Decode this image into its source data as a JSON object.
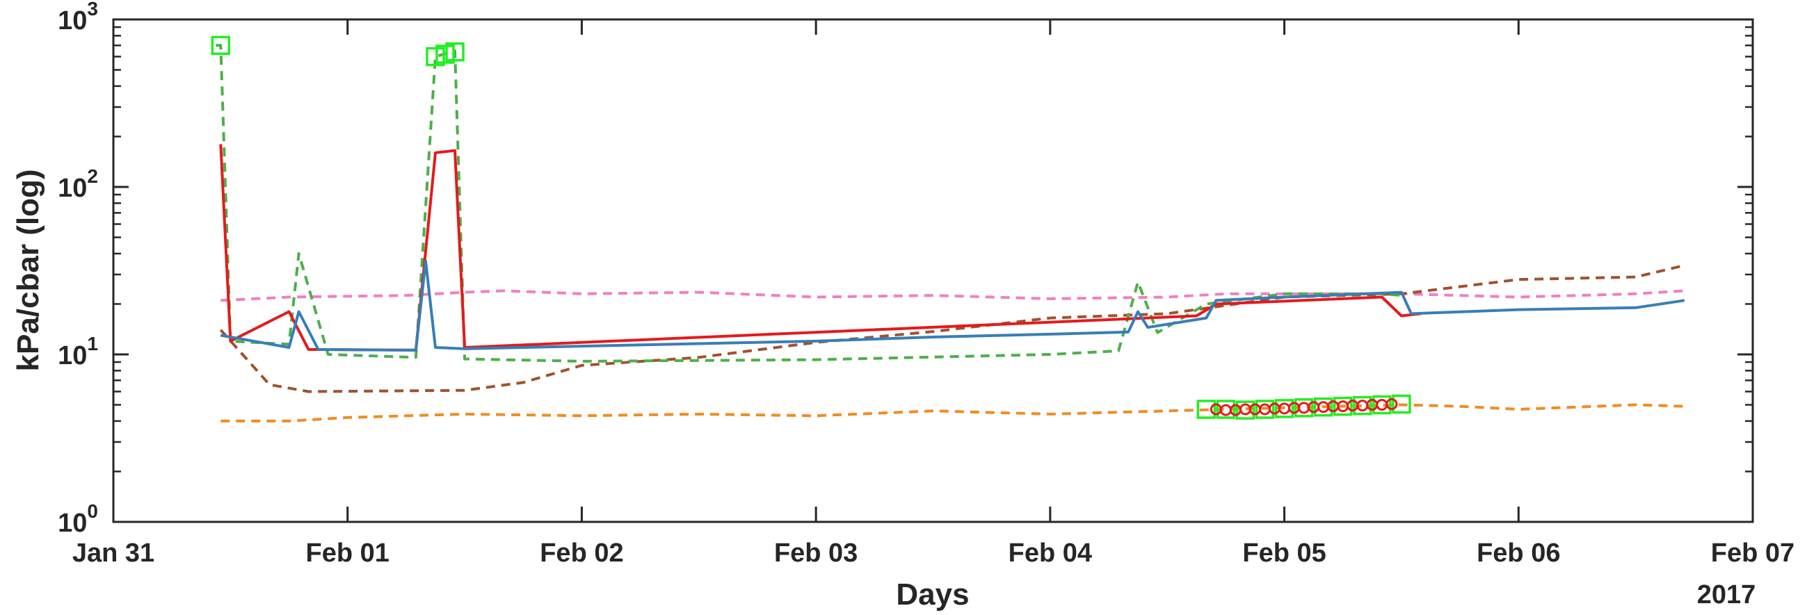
{
  "chart_data": {
    "type": "line",
    "title": "",
    "xlabel": "Days",
    "ylabel": "kPa/cbar (log)",
    "year_label": "2017",
    "y_scale": "log",
    "ylim": [
      1,
      1000
    ],
    "xlim": [
      "2017-01-31T00:00",
      "2017-02-07T00:00"
    ],
    "y_ticks": [
      {
        "value": 1,
        "base": "10",
        "exp": "0"
      },
      {
        "value": 10,
        "base": "10",
        "exp": "1"
      },
      {
        "value": 100,
        "base": "10",
        "exp": "2"
      },
      {
        "value": 1000,
        "base": "10",
        "exp": "3"
      }
    ],
    "x_ticks": [
      {
        "value": "2017-01-31T00:00",
        "label": "Jan 31"
      },
      {
        "value": "2017-02-01T00:00",
        "label": "Feb 01"
      },
      {
        "value": "2017-02-02T00:00",
        "label": "Feb 02"
      },
      {
        "value": "2017-02-03T00:00",
        "label": "Feb 03"
      },
      {
        "value": "2017-02-04T00:00",
        "label": "Feb 04"
      },
      {
        "value": "2017-02-05T00:00",
        "label": "Feb 05"
      },
      {
        "value": "2017-02-06T00:00",
        "label": "Feb 06"
      },
      {
        "value": "2017-02-07T00:00",
        "label": "Feb 07"
      }
    ],
    "grid": false,
    "legend": "none",
    "series": [
      {
        "color": "#f07fc0",
        "style": "dashed",
        "points": [
          [
            "2017-01-31T11:00",
            21
          ],
          [
            "2017-01-31T18:00",
            22
          ],
          [
            "2017-02-01T06:00",
            22.5
          ],
          [
            "2017-02-01T12:00",
            23.5
          ],
          [
            "2017-02-01T16:00",
            24
          ],
          [
            "2017-02-02T00:00",
            23
          ],
          [
            "2017-02-02T12:00",
            23.5
          ],
          [
            "2017-02-03T00:00",
            22
          ],
          [
            "2017-02-03T12:00",
            22.5
          ],
          [
            "2017-02-04T00:00",
            21.5
          ],
          [
            "2017-02-04T12:00",
            22
          ],
          [
            "2017-02-04T18:00",
            23
          ],
          [
            "2017-02-05T00:00",
            23
          ],
          [
            "2017-02-05T12:00",
            23
          ],
          [
            "2017-02-05T18:00",
            22.5
          ],
          [
            "2017-02-06T00:00",
            22
          ],
          [
            "2017-02-06T12:00",
            23
          ],
          [
            "2017-02-06T17:00",
            24
          ]
        ]
      },
      {
        "color": "#f28b22",
        "style": "dashed",
        "points": [
          [
            "2017-01-31T11:00",
            4.0
          ],
          [
            "2017-01-31T18:00",
            4.0
          ],
          [
            "2017-02-01T00:00",
            4.2
          ],
          [
            "2017-02-01T12:00",
            4.4
          ],
          [
            "2017-02-02T00:00",
            4.3
          ],
          [
            "2017-02-02T12:00",
            4.4
          ],
          [
            "2017-02-03T00:00",
            4.3
          ],
          [
            "2017-02-03T12:00",
            4.6
          ],
          [
            "2017-02-04T00:00",
            4.4
          ],
          [
            "2017-02-04T12:00",
            4.6
          ],
          [
            "2017-02-05T00:00",
            4.8
          ],
          [
            "2017-02-05T12:00",
            5.0
          ],
          [
            "2017-02-05T18:00",
            4.9
          ],
          [
            "2017-02-06T00:00",
            4.7
          ],
          [
            "2017-02-06T12:00",
            5.0
          ],
          [
            "2017-02-06T17:00",
            4.9
          ]
        ]
      },
      {
        "color": "#a0522d",
        "style": "dashed",
        "points": [
          [
            "2017-01-31T11:00",
            14
          ],
          [
            "2017-01-31T16:00",
            6.6
          ],
          [
            "2017-01-31T20:00",
            6.0
          ],
          [
            "2017-02-01T12:00",
            6.1
          ],
          [
            "2017-02-01T18:00",
            6.8
          ],
          [
            "2017-02-02T00:00",
            8.6
          ],
          [
            "2017-02-02T12:00",
            9.6
          ],
          [
            "2017-02-03T00:00",
            11.8
          ],
          [
            "2017-02-03T12:00",
            13.7
          ],
          [
            "2017-02-04T00:00",
            16.5
          ],
          [
            "2017-02-04T12:00",
            17.5
          ],
          [
            "2017-02-05T00:00",
            22
          ],
          [
            "2017-02-05T12:00",
            23
          ],
          [
            "2017-02-06T00:00",
            28
          ],
          [
            "2017-02-06T12:00",
            29
          ],
          [
            "2017-02-06T17:00",
            34
          ]
        ]
      },
      {
        "color": "#4daf4a",
        "style": "dashed",
        "points": [
          [
            "2017-01-31T10:30",
            700
          ],
          [
            "2017-01-31T11:00",
            700
          ],
          [
            "2017-01-31T12:00",
            12
          ],
          [
            "2017-01-31T18:00",
            11.5
          ],
          [
            "2017-01-31T19:00",
            40
          ],
          [
            "2017-01-31T22:00",
            10
          ],
          [
            "2017-02-01T07:00",
            9.6
          ],
          [
            "2017-02-01T09:00",
            600
          ],
          [
            "2017-02-01T11:00",
            650
          ],
          [
            "2017-02-01T12:00",
            9.4
          ],
          [
            "2017-02-02T00:00",
            9.1
          ],
          [
            "2017-02-03T00:00",
            9.3
          ],
          [
            "2017-02-04T00:00",
            10
          ],
          [
            "2017-02-04T07:00",
            10.5
          ],
          [
            "2017-02-04T09:00",
            27
          ],
          [
            "2017-02-04T11:00",
            13.5
          ],
          [
            "2017-02-04T16:00",
            20
          ],
          [
            "2017-02-05T00:00",
            23
          ],
          [
            "2017-02-05T10:00",
            23
          ],
          [
            "2017-02-05T12:00",
            22.5
          ]
        ]
      },
      {
        "color": "#e41a1c",
        "style": "solid",
        "points": [
          [
            "2017-01-31T11:00",
            180
          ],
          [
            "2017-01-31T12:00",
            12
          ],
          [
            "2017-01-31T18:00",
            18
          ],
          [
            "2017-01-31T20:00",
            10.7
          ],
          [
            "2017-02-01T07:00",
            10.6
          ],
          [
            "2017-02-01T09:00",
            160
          ],
          [
            "2017-02-01T11:00",
            165
          ],
          [
            "2017-02-01T12:00",
            11
          ],
          [
            "2017-02-04T15:00",
            17
          ],
          [
            "2017-02-04T17:00",
            20
          ],
          [
            "2017-02-05T10:00",
            22
          ],
          [
            "2017-02-05T12:00",
            17
          ],
          [
            "2017-02-05T14:00",
            17.5
          ]
        ]
      },
      {
        "color": "#377eb8",
        "style": "solid",
        "points": [
          [
            "2017-01-31T11:00",
            13
          ],
          [
            "2017-01-31T18:00",
            11
          ],
          [
            "2017-01-31T19:00",
            18
          ],
          [
            "2017-01-31T21:00",
            10.7
          ],
          [
            "2017-02-01T07:00",
            10.6
          ],
          [
            "2017-02-01T08:00",
            36
          ],
          [
            "2017-02-01T09:00",
            11
          ],
          [
            "2017-02-01T12:00",
            10.8
          ],
          [
            "2017-02-02T00:00",
            11.2
          ],
          [
            "2017-02-02T12:00",
            11.6
          ],
          [
            "2017-02-03T00:00",
            12
          ],
          [
            "2017-02-03T12:00",
            12.7
          ],
          [
            "2017-02-04T00:00",
            13.2
          ],
          [
            "2017-02-04T08:00",
            13.6
          ],
          [
            "2017-02-04T09:00",
            18
          ],
          [
            "2017-02-04T10:00",
            14.5
          ],
          [
            "2017-02-04T16:00",
            16.5
          ],
          [
            "2017-02-04T17:00",
            21
          ],
          [
            "2017-02-05T00:00",
            22
          ],
          [
            "2017-02-05T12:00",
            23.5
          ],
          [
            "2017-02-05T13:00",
            17.5
          ],
          [
            "2017-02-06T00:00",
            18.5
          ],
          [
            "2017-02-06T12:00",
            19
          ],
          [
            "2017-02-06T17:00",
            21
          ]
        ]
      }
    ],
    "markers": [
      {
        "shape": "square",
        "color": "#22ee22",
        "points": [
          [
            "2017-01-31T11:00",
            700
          ],
          [
            "2017-02-01T09:00",
            600
          ],
          [
            "2017-02-01T10:00",
            620
          ],
          [
            "2017-02-01T11:00",
            640
          ],
          [
            "2017-02-04T16:00",
            4.7
          ],
          [
            "2017-02-04T18:00",
            4.7
          ],
          [
            "2017-02-04T20:00",
            4.65
          ],
          [
            "2017-02-04T22:00",
            4.7
          ],
          [
            "2017-02-05T00:00",
            4.75
          ],
          [
            "2017-02-05T02:00",
            4.8
          ],
          [
            "2017-02-05T04:00",
            4.85
          ],
          [
            "2017-02-05T06:00",
            4.9
          ],
          [
            "2017-02-05T08:00",
            4.95
          ],
          [
            "2017-02-05T10:00",
            5.0
          ],
          [
            "2017-02-05T12:00",
            5.05
          ]
        ]
      },
      {
        "shape": "circle",
        "color": "#e41a1c",
        "points": [
          [
            "2017-02-04T17:00",
            4.7
          ],
          [
            "2017-02-04T18:00",
            4.65
          ],
          [
            "2017-02-04T19:00",
            4.65
          ],
          [
            "2017-02-04T20:00",
            4.7
          ],
          [
            "2017-02-04T21:00",
            4.7
          ],
          [
            "2017-02-04T22:00",
            4.7
          ],
          [
            "2017-02-04T23:00",
            4.75
          ],
          [
            "2017-02-05T00:00",
            4.75
          ],
          [
            "2017-02-05T01:00",
            4.8
          ],
          [
            "2017-02-05T02:00",
            4.8
          ],
          [
            "2017-02-05T03:00",
            4.85
          ],
          [
            "2017-02-05T04:00",
            4.85
          ],
          [
            "2017-02-05T05:00",
            4.9
          ],
          [
            "2017-02-05T06:00",
            4.9
          ],
          [
            "2017-02-05T07:00",
            4.95
          ],
          [
            "2017-02-05T08:00",
            4.95
          ],
          [
            "2017-02-05T09:00",
            5.0
          ],
          [
            "2017-02-05T10:00",
            5.0
          ],
          [
            "2017-02-05T11:00",
            5.05
          ]
        ]
      }
    ]
  }
}
